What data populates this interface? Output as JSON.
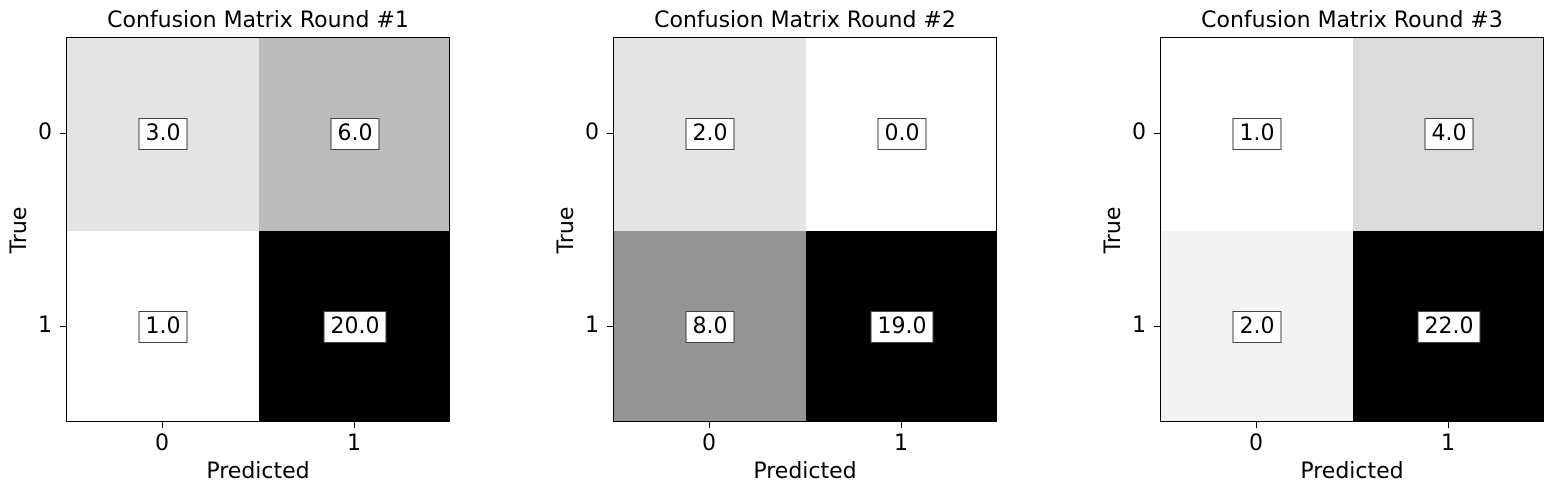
{
  "chart_data": [
    {
      "type": "heatmap",
      "title": "Confusion Matrix Round #1",
      "xlabel": "Predicted",
      "ylabel": "True",
      "x_ticks": [
        "0",
        "1"
      ],
      "y_ticks": [
        "0",
        "1"
      ],
      "colormap": "Greys",
      "values": [
        [
          3.0,
          6.0
        ],
        [
          1.0,
          20.0
        ]
      ],
      "labels": [
        [
          "3.0",
          "6.0"
        ],
        [
          "1.0",
          "20.0"
        ]
      ]
    },
    {
      "type": "heatmap",
      "title": "Confusion Matrix Round #2",
      "xlabel": "Predicted",
      "ylabel": "True",
      "x_ticks": [
        "0",
        "1"
      ],
      "y_ticks": [
        "0",
        "1"
      ],
      "colormap": "Greys",
      "values": [
        [
          2.0,
          0.0
        ],
        [
          8.0,
          19.0
        ]
      ],
      "labels": [
        [
          "2.0",
          "0.0"
        ],
        [
          "8.0",
          "19.0"
        ]
      ]
    },
    {
      "type": "heatmap",
      "title": "Confusion Matrix Round #3",
      "xlabel": "Predicted",
      "ylabel": "True",
      "x_ticks": [
        "0",
        "1"
      ],
      "y_ticks": [
        "0",
        "1"
      ],
      "colormap": "Greys",
      "values": [
        [
          1.0,
          4.0
        ],
        [
          2.0,
          22.0
        ]
      ],
      "labels": [
        [
          "1.0",
          "4.0"
        ],
        [
          "2.0",
          "22.0"
        ]
      ]
    }
  ]
}
